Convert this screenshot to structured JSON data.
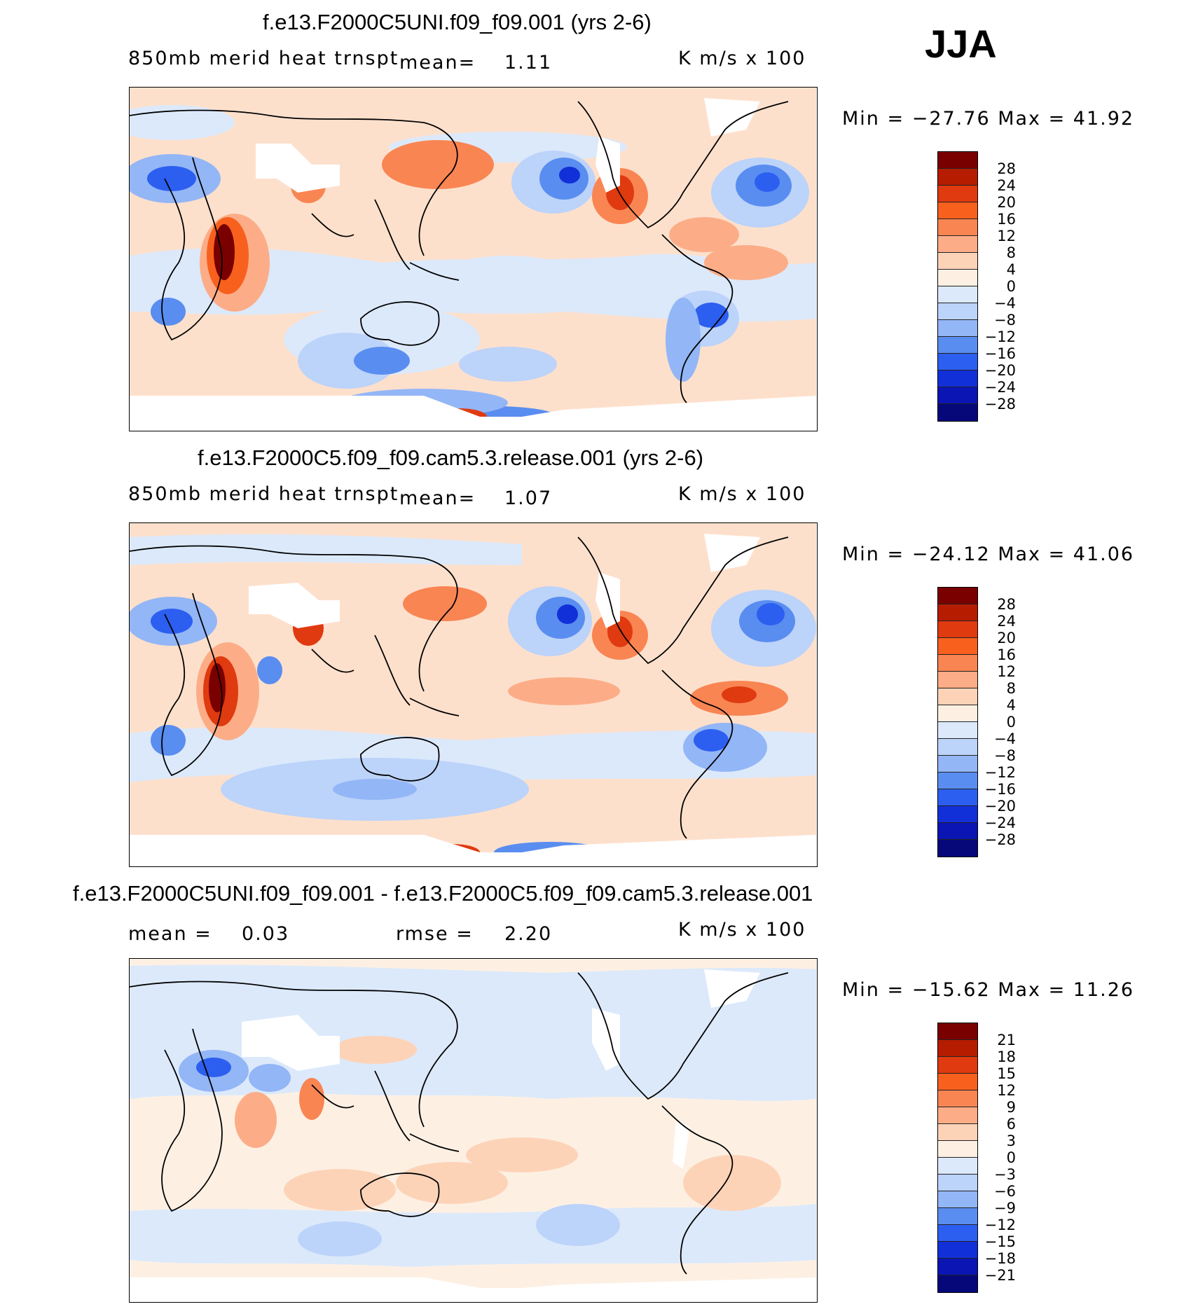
{
  "season": "JJA",
  "panels": [
    {
      "title": "f.e13.F2000C5UNI.f09_f09.001 (yrs 2-6)",
      "variable": "850mb merid heat trnspt",
      "mean_label": "mean=",
      "mean_value": "1.11",
      "units": "K m/s x 100",
      "minmax": "Min = −27.76 Max =   41.92",
      "levels": [
        "28",
        "24",
        "20",
        "16",
        "12",
        "8",
        "4",
        "0",
        "−4",
        "−8",
        "−12",
        "−16",
        "−20",
        "−24",
        "−28"
      ]
    },
    {
      "title": "f.e13.F2000C5.f09_f09.cam5.3.release.001 (yrs 2-6)",
      "variable": "850mb merid heat trnspt",
      "mean_label": "mean=",
      "mean_value": "1.07",
      "units": "K m/s x 100",
      "minmax": "Min = −24.12 Max =   41.06",
      "levels": [
        "28",
        "24",
        "20",
        "16",
        "12",
        "8",
        "4",
        "0",
        "−4",
        "−8",
        "−12",
        "−16",
        "−20",
        "−24",
        "−28"
      ]
    },
    {
      "title": "f.e13.F2000C5UNI.f09_f09.001 - f.e13.F2000C5.f09_f09.cam5.3.release.001",
      "mean_label": "mean =",
      "mean_value": "0.03",
      "rmse_label": "rmse =",
      "rmse_value": "2.20",
      "units": "K m/s x 100",
      "minmax": "Min = −15.62 Max =   11.26",
      "levels": [
        "21",
        "18",
        "15",
        "12",
        "9",
        "6",
        "3",
        "0",
        "−3",
        "−6",
        "−9",
        "−12",
        "−15",
        "−18",
        "−21"
      ]
    }
  ],
  "colors": {
    "colorbar": [
      "#7a0000",
      "#b51c00",
      "#e03a10",
      "#f8601e",
      "#f98553",
      "#fcad87",
      "#fdd3b8",
      "#fdf0e3",
      "#dce9fb",
      "#bcd3fa",
      "#93b6f6",
      "#5a8df0",
      "#2c5ff0",
      "#1230d8",
      "#0a15b4",
      "#06087a"
    ],
    "ocean_neutral": "#fde4d2",
    "land_masked": "#ffffff"
  }
}
